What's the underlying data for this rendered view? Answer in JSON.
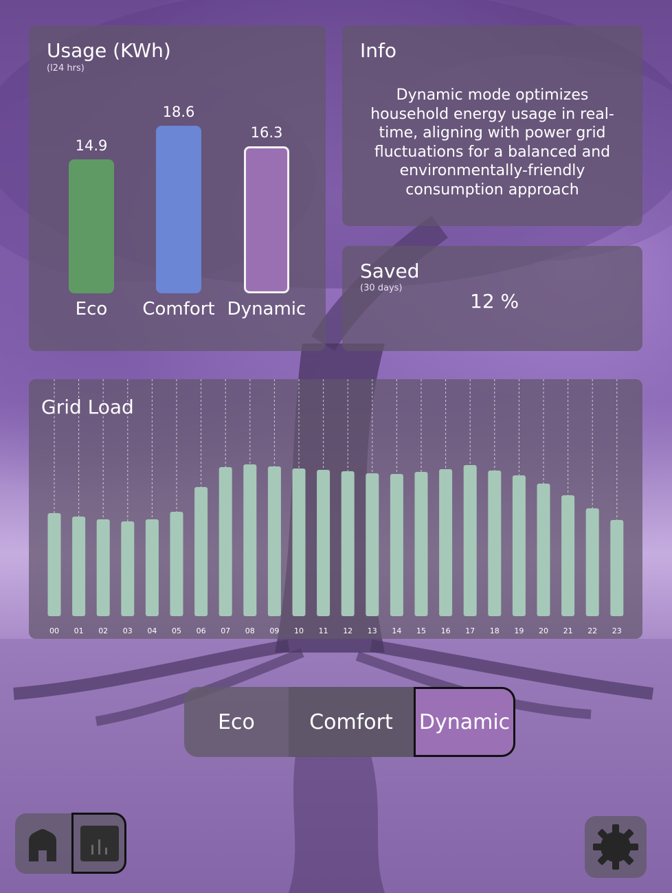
{
  "usage": {
    "title": "Usage (KWh)",
    "subtitle": "(l24 hrs)",
    "chart_data": {
      "type": "bar",
      "title": "Usage (KWh)",
      "categories": [
        "Eco",
        "Comfort",
        "Dynamic"
      ],
      "values": [
        14.9,
        18.6,
        16.3
      ],
      "value_labels": [
        "14.9",
        "18.6",
        "16.3"
      ],
      "colors": [
        "#5f9a64",
        "#6a86d4",
        "#9b70b3"
      ],
      "ylim": [
        0,
        20
      ]
    }
  },
  "info": {
    "title": "Info",
    "text": "Dynamic mode optimizes household energy usage in real-time, aligning with power grid fluctuations for a balanced and environmentally-friendly consumption approach"
  },
  "saved": {
    "title": "Saved",
    "subtitle": "(30 days)",
    "value": "12 %"
  },
  "grid_load": {
    "title": "Grid Load",
    "chart_data": {
      "type": "bar",
      "title": "Grid Load",
      "categories": [
        "00",
        "01",
        "02",
        "03",
        "04",
        "05",
        "06",
        "07",
        "08",
        "09",
        "10",
        "11",
        "12",
        "13",
        "14",
        "15",
        "16",
        "17",
        "18",
        "19",
        "20",
        "21",
        "22",
        "23"
      ],
      "values": [
        150,
        145,
        141,
        138,
        141,
        152,
        188,
        217,
        221,
        218,
        215,
        213,
        211,
        208,
        207,
        210,
        214,
        220,
        212,
        205,
        193,
        176,
        157,
        140
      ],
      "ylim": [
        0,
        250
      ],
      "grid": true,
      "bar_color": "#a6c8b8"
    }
  },
  "modes": {
    "options": [
      "Eco",
      "Comfort",
      "Dynamic"
    ],
    "selected": "Dynamic"
  },
  "nav": {
    "home_icon": "home-icon",
    "stats_icon": "bar-chart-icon",
    "settings_icon": "gear-icon",
    "active": "stats"
  }
}
